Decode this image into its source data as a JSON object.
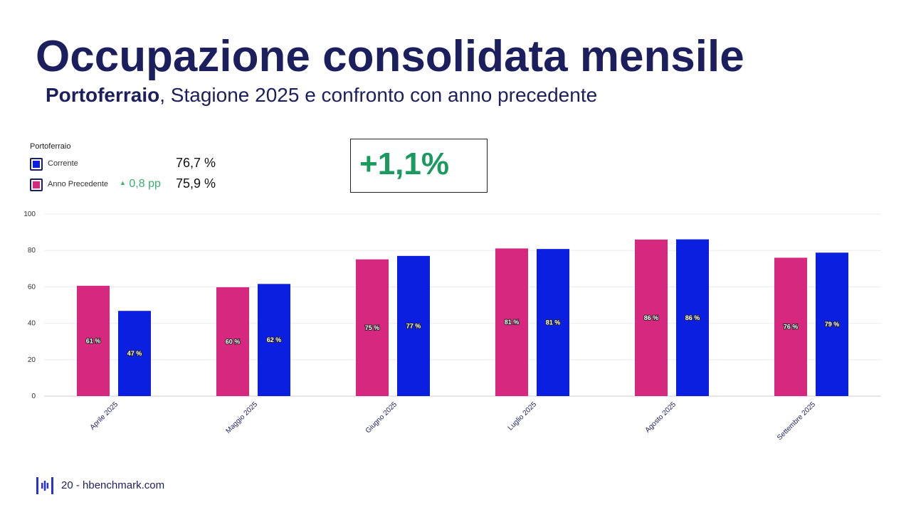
{
  "title": "Occupazione consolidata mensile",
  "subtitle": {
    "location": "Portoferraio",
    "rest": ", Stagione 2025 e confronto con anno precedente"
  },
  "legend": {
    "title": "Portoferraio",
    "current": {
      "label": "Corrente",
      "value": "76,7 %",
      "color": "#0b1fe0"
    },
    "previous": {
      "label": "Anno Precedente",
      "delta": "0,8 pp",
      "value": "75,9 %",
      "color": "#d6287e"
    }
  },
  "kpi": {
    "value": "+1,1%"
  },
  "footer": {
    "page": "20",
    "separator": " - ",
    "site": "hbenchmark.com"
  },
  "chart_data": {
    "type": "bar",
    "title": "",
    "xlabel": "",
    "ylabel": "",
    "ylim": [
      0,
      100
    ],
    "yticks": [
      0,
      20,
      40,
      60,
      80,
      100
    ],
    "categories": [
      "Aprile 2025",
      "Maggio 2025",
      "Giugno 2025",
      "Luglio 2025",
      "Agosto 2025",
      "Settembre 2025"
    ],
    "series": [
      {
        "name": "Anno Precedente",
        "color": "#d6287e",
        "values": [
          60.6,
          59.8,
          75.1,
          81.1,
          86.0,
          76.0
        ],
        "labels": [
          "61 %",
          "60 %",
          "75 %",
          "81 %",
          "86 %",
          "76 %"
        ]
      },
      {
        "name": "Corrente",
        "color": "#0b1fe0",
        "values": [
          46.8,
          61.6,
          77.0,
          80.8,
          86.1,
          78.8
        ],
        "labels": [
          "47 %",
          "62 %",
          "77 %",
          "81 %",
          "86 %",
          "79 %"
        ]
      }
    ]
  }
}
